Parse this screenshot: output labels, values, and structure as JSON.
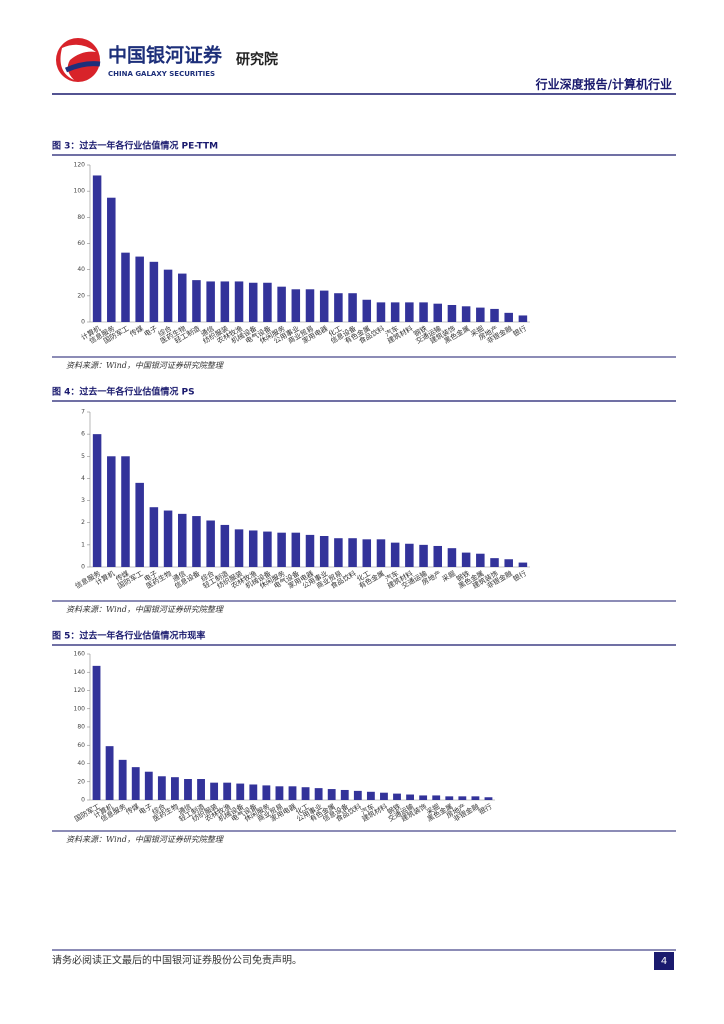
{
  "header": {
    "brand": "中国银河证券",
    "brand_en": "CHINA GALAXY SECURITIES",
    "unit": "研究院",
    "report": "行业深度报告/计算机行业"
  },
  "footer": {
    "disclaimer": "请务必阅读正文最后的中国银河证券股份公司免责声明。",
    "page": "4"
  },
  "chart_data": [
    {
      "type": "bar",
      "title": "图 3：过去一年各行业估值情况 PE-TTM",
      "source": "资料来源：Wind，中国银河证券研究院整理",
      "color": "#33339a",
      "categories": [
        "计算机",
        "信息服务",
        "国防军工",
        "传媒",
        "电子",
        "综合",
        "医药生物",
        "轻工制造",
        "通信",
        "纺织服装",
        "农林牧渔",
        "机械设备",
        "电气设备",
        "休闲服务",
        "公用事业",
        "商业贸易",
        "家用电器",
        "化工",
        "信息设备",
        "有色金属",
        "食品饮料",
        "汽车",
        "建筑材料",
        "钢铁",
        "交通运输",
        "建筑装饰",
        "黑色金属",
        "采掘",
        "房地产",
        "非银金融",
        "银行"
      ],
      "values": [
        112,
        95,
        53,
        50,
        46,
        40,
        37,
        32,
        31,
        31,
        31,
        30,
        30,
        27,
        25,
        25,
        24,
        22,
        22,
        17,
        15,
        15,
        15,
        15,
        14,
        13,
        12,
        11,
        10,
        7,
        5
      ],
      "ylim": [
        0,
        120
      ],
      "yticks": [
        0,
        20,
        40,
        60,
        80,
        100,
        120
      ]
    },
    {
      "type": "bar",
      "title": "图 4：过去一年各行业估值情况 PS",
      "source": "资料来源：Wind，中国银河证券研究院整理",
      "color": "#33339a",
      "categories": [
        "信息服务",
        "计算机",
        "传媒",
        "国防军工",
        "电子",
        "医药生物",
        "通信",
        "信息设备",
        "综合",
        "轻工制造",
        "纺织服装",
        "农林牧渔",
        "机械设备",
        "休闲服务",
        "电气设备",
        "家用电器",
        "公用事业",
        "商业贸易",
        "食品饮料",
        "化工",
        "有色金属",
        "汽车",
        "建筑材料",
        "交通运输",
        "房地产",
        "采掘",
        "钢铁",
        "黑色金属",
        "建筑装饰",
        "非银金融",
        "银行"
      ],
      "values": [
        6.0,
        5.0,
        5.0,
        3.8,
        2.7,
        2.55,
        2.4,
        2.3,
        2.1,
        1.9,
        1.7,
        1.65,
        1.6,
        1.55,
        1.55,
        1.45,
        1.4,
        1.3,
        1.3,
        1.25,
        1.25,
        1.1,
        1.05,
        1.0,
        0.95,
        0.85,
        0.65,
        0.6,
        0.4,
        0.35,
        0.2
      ],
      "ylim": [
        0,
        7
      ],
      "yticks": [
        0,
        1,
        2,
        3,
        4,
        5,
        6,
        7
      ]
    },
    {
      "type": "bar",
      "title": "图 5：过去一年各行业估值情况市现率",
      "source": "资料来源：Wind，中国银河证券研究院整理",
      "color": "#33339a",
      "categories": [
        "国防军工",
        "计算机",
        "信息服务",
        "传媒",
        "电子",
        "综合",
        "医药生物",
        "通信",
        "轻工制造",
        "纺织服装",
        "农林牧渔",
        "机械设备",
        "电气设备",
        "休闲服务",
        "商业贸易",
        "家用电器",
        "化工",
        "公用事业",
        "有色金属",
        "信息设备",
        "食品饮料",
        "汽车",
        "建筑材料",
        "钢铁",
        "交通运输",
        "建筑装饰",
        "采掘",
        "黑色金属",
        "房地产",
        "非银金融",
        "银行"
      ],
      "values": [
        147,
        59,
        44,
        36,
        31,
        26,
        25,
        23,
        23,
        19,
        19,
        18,
        17,
        16,
        15,
        15,
        14,
        13,
        12,
        11,
        10,
        9,
        8,
        7,
        6,
        5,
        5,
        4,
        4,
        4,
        3
      ],
      "ylim": [
        0,
        160
      ],
      "yticks": [
        0,
        20,
        40,
        60,
        80,
        100,
        120,
        140,
        160
      ]
    }
  ]
}
